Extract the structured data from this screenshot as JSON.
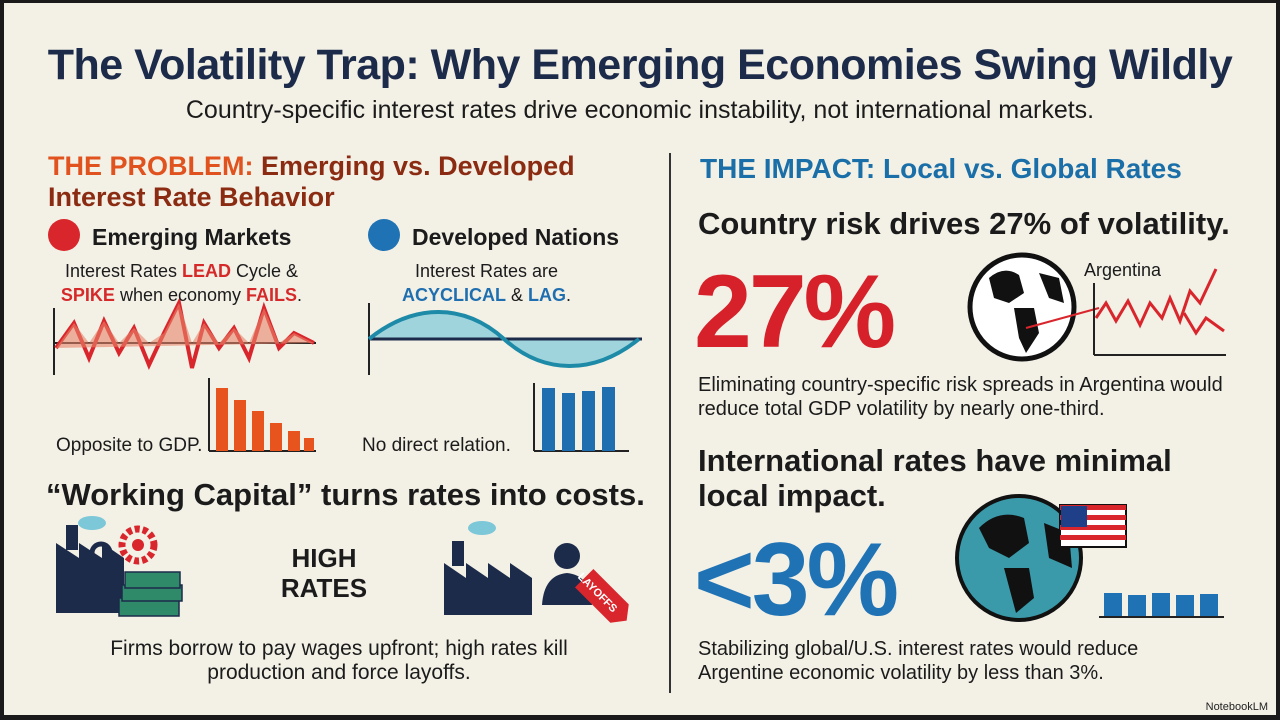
{
  "header": {
    "title": "The Volatility Trap: Why Emerging Economies Swing Wildly",
    "subtitle": "Country-specific interest rates drive economic instability, not international markets."
  },
  "problem": {
    "label": "THE PROBLEM:",
    "heading": "Emerging vs. Developed Interest Rate Behavior",
    "emerging": {
      "name": "Emerging Markets",
      "desc": [
        "Interest Rates ",
        "LEAD",
        " Cycle & ",
        "SPIKE",
        " when economy ",
        "FAILS",
        "."
      ],
      "note": "Opposite to GDP."
    },
    "developed": {
      "name": "Developed Nations",
      "desc": [
        "Interest Rates are ",
        "ACYCLICAL",
        " & ",
        "LAG",
        "."
      ],
      "note": "No direct relation."
    },
    "working_capital": {
      "heading": "“Working Capital” turns rates into costs.",
      "middle": "HIGH RATES",
      "tag": "LAYOFFS",
      "text": "Firms borrow to pay wages upfront; high rates kill production and force layoffs."
    }
  },
  "impact": {
    "label": "THE IMPACT:",
    "heading": "Local vs. Global Rates",
    "country": {
      "heading": "Country risk drives 27% of volatility.",
      "big": "27%",
      "map_label": "Argentina",
      "text": "Eliminating country-specific risk spreads in Argentina would reduce total GDP volatility by nearly one-third."
    },
    "international": {
      "heading": "International rates have minimal local impact.",
      "big": "<3%",
      "text": "Stabilizing global/U.S. interest rates would reduce Argentine economic volatility by less than 3%."
    }
  },
  "footer": {
    "brand": "NotebookLM"
  }
}
